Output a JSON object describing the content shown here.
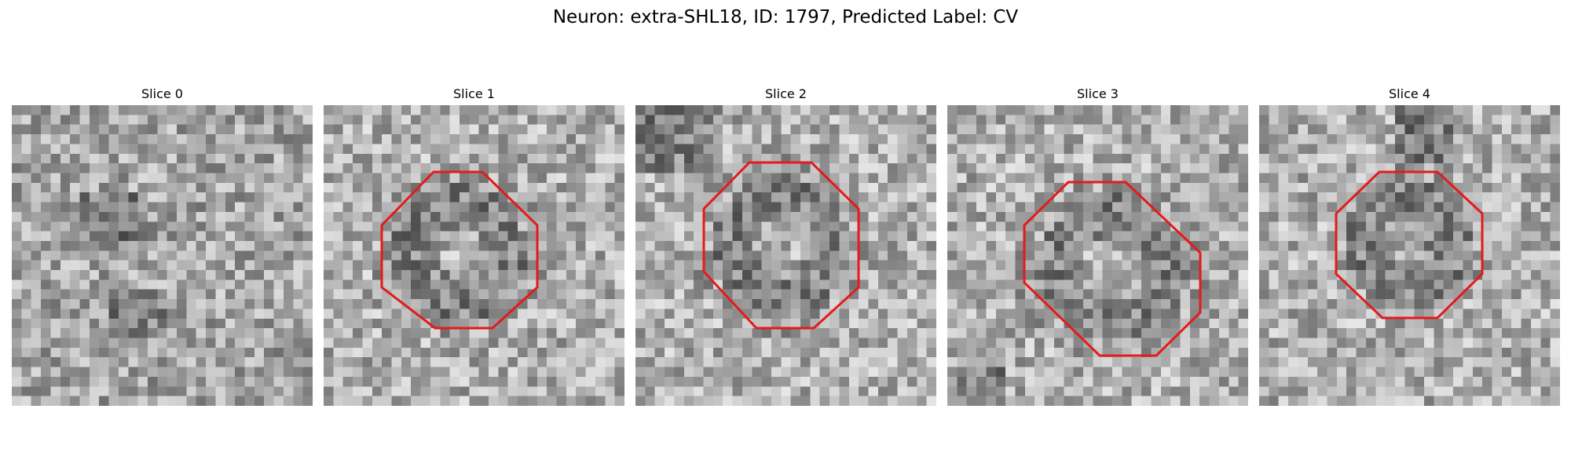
{
  "figure": {
    "title": "Neuron: extra-SHL18, ID: 1797, Predicted Label: CV"
  },
  "colors": {
    "contour": "#e41a1c",
    "background": "#ffffff"
  },
  "slices": [
    {
      "label": "Slice 0",
      "has_contour": false,
      "seed": 11
    },
    {
      "label": "Slice 1",
      "has_contour": true,
      "seed": 23
    },
    {
      "label": "Slice 2",
      "has_contour": true,
      "seed": 37
    },
    {
      "label": "Slice 3",
      "has_contour": true,
      "seed": 53
    },
    {
      "label": "Slice 4",
      "has_contour": true,
      "seed": 71
    }
  ]
}
